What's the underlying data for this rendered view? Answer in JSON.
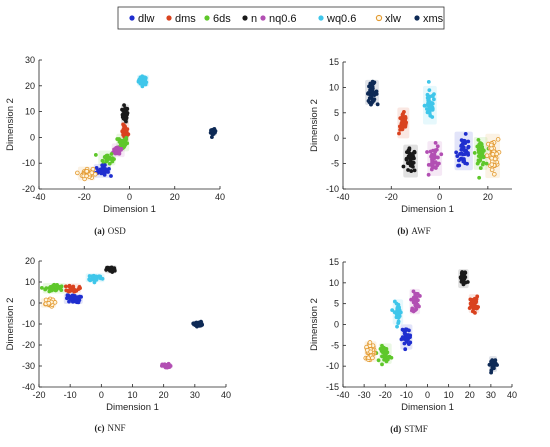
{
  "legend": {
    "entries": [
      {
        "label": "dlw",
        "color": "#1f2ecf",
        "marker": "filled"
      },
      {
        "label": "dms",
        "color": "#d9421f",
        "marker": "filled"
      },
      {
        "label": "6ds",
        "color": "#5ec72a",
        "marker": "filled"
      },
      {
        "label": "n",
        "color": "#1a1a1a",
        "marker": "filled"
      },
      {
        "label": "nq0.6",
        "color": "#b24fb3",
        "marker": "filled"
      },
      {
        "label": "wq0.6",
        "color": "#3fc6ea",
        "marker": "filled"
      },
      {
        "label": "xlw",
        "color": "#e39a32",
        "marker": "open"
      },
      {
        "label": "xms",
        "color": "#0e2a56",
        "marker": "filled"
      }
    ]
  },
  "chart_data": [
    {
      "type": "scatter",
      "caption_key": "(a)",
      "caption_text": "OSD",
      "xlabel": "Dimension 1",
      "ylabel": "Dimension 2",
      "xlim": [
        -40,
        40
      ],
      "ylim": [
        -20,
        30
      ],
      "xticks": [
        -40,
        -20,
        0,
        20,
        40
      ],
      "yticks": [
        -20,
        -10,
        0,
        10,
        20,
        30
      ],
      "clusters": [
        {
          "series": "wq0.6",
          "cx": 6,
          "cy": 22,
          "sx": 1.4,
          "sy": 1.2,
          "n": 40
        },
        {
          "series": "n",
          "cx": -2,
          "cy": 9,
          "sx": 0.9,
          "sy": 2.0,
          "n": 35
        },
        {
          "series": "dms",
          "cx": -2,
          "cy": 2,
          "sx": 1.0,
          "sy": 2.0,
          "n": 30
        },
        {
          "series": "6ds",
          "cx": -3,
          "cy": -2,
          "sx": 1.5,
          "sy": 1.8,
          "n": 30
        },
        {
          "series": "nq0.6",
          "cx": -5,
          "cy": -5,
          "sx": 1.5,
          "sy": 1.4,
          "n": 30
        },
        {
          "series": "6ds",
          "cx": -10,
          "cy": -8,
          "sx": 2.0,
          "sy": 1.5,
          "n": 25
        },
        {
          "series": "dlw",
          "cx": -12,
          "cy": -13,
          "sx": 2.0,
          "sy": 1.4,
          "n": 30
        },
        {
          "series": "xlw",
          "cx": -19,
          "cy": -14,
          "sx": 2.0,
          "sy": 1.4,
          "n": 30
        },
        {
          "series": "xms",
          "cx": 37,
          "cy": 2,
          "sx": 0.8,
          "sy": 0.8,
          "n": 30
        }
      ]
    },
    {
      "type": "scatter",
      "caption_key": "(b)",
      "caption_text": "AWF",
      "xlabel": "Dimension 1",
      "ylabel": "Dimension 2",
      "xlim": [
        -40,
        30
      ],
      "ylim": [
        -10,
        15
      ],
      "xticks": [
        -40,
        -20,
        0,
        20
      ],
      "yticks": [
        -10,
        -5,
        0,
        5,
        10,
        15
      ],
      "clusters": [
        {
          "series": "xms",
          "cx": -28,
          "cy": 9,
          "sx": 1.5,
          "sy": 1.3,
          "n": 40
        },
        {
          "series": "dms",
          "cx": -15,
          "cy": 3,
          "sx": 1.3,
          "sy": 1.6,
          "n": 35
        },
        {
          "series": "wq0.6",
          "cx": -4,
          "cy": 6.5,
          "sx": 1.5,
          "sy": 2.0,
          "n": 40
        },
        {
          "series": "n",
          "cx": -12,
          "cy": -4.5,
          "sx": 1.6,
          "sy": 1.7,
          "n": 40
        },
        {
          "series": "nq0.6",
          "cx": -2,
          "cy": -4,
          "sx": 1.6,
          "sy": 1.8,
          "n": 40
        },
        {
          "series": "dlw",
          "cx": 10,
          "cy": -2.5,
          "sx": 2.0,
          "sy": 2.0,
          "n": 40
        },
        {
          "series": "6ds",
          "cx": 17,
          "cy": -3,
          "sx": 1.5,
          "sy": 1.7,
          "n": 40
        },
        {
          "series": "xlw",
          "cx": 22,
          "cy": -3.5,
          "sx": 1.6,
          "sy": 2.3,
          "n": 40
        }
      ]
    },
    {
      "type": "scatter",
      "caption_key": "(c)",
      "caption_text": "NNF",
      "xlabel": "Dimension 1",
      "ylabel": "Dimension 2",
      "xlim": [
        -20,
        40
      ],
      "ylim": [
        -40,
        20
      ],
      "xticks": [
        -20,
        -10,
        0,
        10,
        20,
        30,
        40
      ],
      "yticks": [
        -40,
        -30,
        -20,
        -10,
        0,
        10,
        20
      ],
      "clusters": [
        {
          "series": "n",
          "cx": 3,
          "cy": 16,
          "sx": 1.0,
          "sy": 1.0,
          "n": 35
        },
        {
          "series": "wq0.6",
          "cx": -2,
          "cy": 12,
          "sx": 1.6,
          "sy": 1.1,
          "n": 35
        },
        {
          "series": "6ds",
          "cx": -15,
          "cy": 7,
          "sx": 2.0,
          "sy": 1.3,
          "n": 35
        },
        {
          "series": "dms",
          "cx": -9,
          "cy": 7,
          "sx": 1.3,
          "sy": 1.2,
          "n": 30
        },
        {
          "series": "xlw",
          "cx": -17,
          "cy": 0,
          "sx": 1.3,
          "sy": 1.2,
          "n": 40
        },
        {
          "series": "dlw",
          "cx": -9,
          "cy": 2,
          "sx": 1.6,
          "sy": 1.3,
          "n": 35
        },
        {
          "series": "xms",
          "cx": 31,
          "cy": -10,
          "sx": 1.0,
          "sy": 0.8,
          "n": 35
        },
        {
          "series": "nq0.6",
          "cx": 21,
          "cy": -30,
          "sx": 1.0,
          "sy": 0.7,
          "n": 35
        }
      ]
    },
    {
      "type": "scatter",
      "caption_key": "(d)",
      "caption_text": "STMF",
      "xlabel": "Dimension 1",
      "ylabel": "Dimension 2",
      "xlim": [
        -40,
        40
      ],
      "ylim": [
        -15,
        15
      ],
      "xticks": [
        -40,
        -30,
        -20,
        -10,
        0,
        10,
        20,
        30,
        40
      ],
      "yticks": [
        -15,
        -10,
        -5,
        0,
        5,
        10,
        15
      ],
      "clusters": [
        {
          "series": "n",
          "cx": 17,
          "cy": 11,
          "sx": 1.3,
          "sy": 1.2,
          "n": 35
        },
        {
          "series": "dms",
          "cx": 22,
          "cy": 5,
          "sx": 1.3,
          "sy": 1.2,
          "n": 35
        },
        {
          "series": "nq0.6",
          "cx": -6,
          "cy": 5.5,
          "sx": 1.3,
          "sy": 1.6,
          "n": 35
        },
        {
          "series": "wq0.6",
          "cx": -14,
          "cy": 3,
          "sx": 1.3,
          "sy": 1.6,
          "n": 35
        },
        {
          "series": "dlw",
          "cx": -10,
          "cy": -3,
          "sx": 1.5,
          "sy": 1.6,
          "n": 35
        },
        {
          "series": "6ds",
          "cx": -20,
          "cy": -7,
          "sx": 1.6,
          "sy": 1.3,
          "n": 40
        },
        {
          "series": "xlw",
          "cx": -27,
          "cy": -6.5,
          "sx": 1.5,
          "sy": 1.3,
          "n": 40
        },
        {
          "series": "xms",
          "cx": 31,
          "cy": -9.5,
          "sx": 1.0,
          "sy": 1.0,
          "n": 35
        }
      ]
    }
  ]
}
